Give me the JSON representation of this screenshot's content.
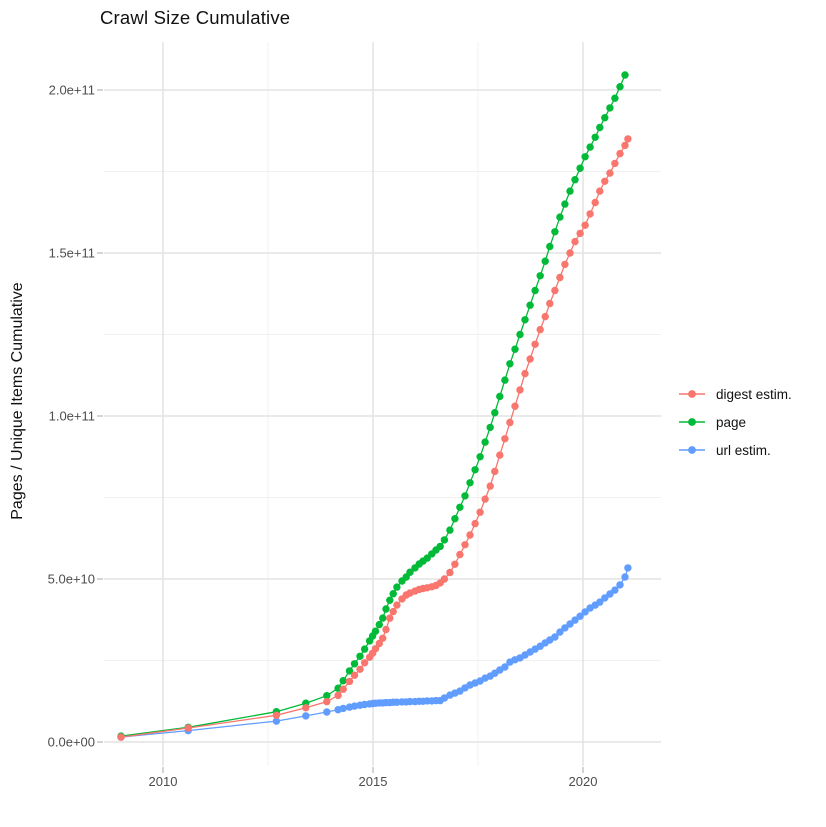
{
  "title": "Crawl Size Cumulative",
  "y_axis": {
    "label": "Pages / Unique Items Cumulative",
    "tick_labels": [
      "0.0e+00",
      "5.0e+10",
      "1.0e+11",
      "1.5e+11",
      "2.0e+11"
    ]
  },
  "x_axis": {
    "tick_labels": [
      "2010",
      "2015",
      "2020"
    ]
  },
  "legend": {
    "position": "right",
    "entries": [
      {
        "label": "digest estim.",
        "color": "#F8766D"
      },
      {
        "label": "page",
        "color": "#00BA38"
      },
      {
        "label": "url estim.",
        "color": "#619CFF"
      }
    ]
  },
  "colors": {
    "background": "#ffffff",
    "grid_major": "#e4e4e4",
    "grid_minor": "#f1f1f1",
    "tick_mark": "#bdbdbd",
    "axis_text": "#4d4d4d",
    "title_text": "#111111"
  },
  "chart_data": {
    "type": "line",
    "title": "Crawl Size Cumulative",
    "xlabel": "",
    "ylabel": "Pages / Unique Items Cumulative",
    "values_unit": "pages, in billions (1e9)",
    "xlim": [
      2008.6,
      2021.9
    ],
    "ylim": [
      0,
      215000000000.0
    ],
    "x_breaks": [
      2010,
      2015,
      2020
    ],
    "x_minor_breaks": [
      2012.5,
      2017.5
    ],
    "y_breaks": [
      0,
      50000000000.0,
      100000000000.0,
      150000000000.0,
      200000000000.0
    ],
    "y_minor_breaks": [
      25000000000.0,
      75000000000.0,
      125000000000.0,
      175000000000.0
    ],
    "grid": "major+minor",
    "legend_position": "right",
    "x": [
      2009.0,
      2010.6,
      2012.7,
      2013.4,
      2013.9,
      2014.17,
      2014.29,
      2014.44,
      2014.56,
      2014.69,
      2014.8,
      2014.92,
      2014.99,
      2015.06,
      2015.15,
      2015.23,
      2015.31,
      2015.4,
      2015.48,
      2015.57,
      2015.69,
      2015.79,
      2015.88,
      2016.0,
      2016.1,
      2016.19,
      2016.29,
      2016.4,
      2016.5,
      2016.6,
      2016.7,
      2016.83,
      2016.95,
      2017.07,
      2017.19,
      2017.31,
      2017.43,
      2017.55,
      2017.67,
      2017.79,
      2017.9,
      2018.02,
      2018.14,
      2018.26,
      2018.38,
      2018.5,
      2018.62,
      2018.74,
      2018.86,
      2018.98,
      2019.1,
      2019.21,
      2019.33,
      2019.45,
      2019.57,
      2019.69,
      2019.81,
      2019.93,
      2020.05,
      2020.17,
      2020.29,
      2020.4,
      2020.52,
      2020.64,
      2020.76,
      2020.88,
      2021.0,
      2021.07
    ],
    "series": [
      {
        "name": "digest estim.",
        "color": "#F8766D",
        "values_1e9": [
          1.5,
          4.3,
          8.2,
          10.5,
          12.4,
          14.3,
          16.2,
          18.6,
          20.5,
          22.3,
          24.3,
          26.0,
          27.2,
          28.6,
          30.2,
          31.8,
          34.5,
          38.0,
          40.0,
          42.0,
          43.9,
          45.1,
          45.7,
          46.3,
          46.8,
          47.1,
          47.3,
          47.6,
          48.0,
          48.8,
          50.0,
          52.0,
          54.5,
          57.5,
          60.5,
          63.5,
          67.0,
          70.5,
          74.5,
          78.5,
          83.0,
          88.0,
          93.0,
          98.0,
          103.0,
          108.0,
          113.0,
          117.5,
          122.0,
          126.5,
          130.5,
          134.5,
          138.5,
          142.5,
          146.5,
          150.0,
          153.5,
          156.0,
          158.5,
          162.0,
          165.5,
          169.0,
          172.0,
          174.5,
          177.5,
          180.5,
          183.0,
          185.0
        ]
      },
      {
        "name": "page",
        "color": "#00BA38",
        "values_1e9": [
          1.8,
          4.5,
          9.3,
          11.9,
          14.2,
          16.5,
          18.8,
          21.8,
          24.0,
          26.3,
          28.5,
          31.0,
          32.5,
          34.0,
          36.0,
          38.0,
          40.8,
          43.5,
          45.5,
          47.5,
          49.4,
          50.6,
          52.1,
          53.4,
          54.6,
          55.5,
          56.4,
          57.7,
          58.9,
          60.0,
          62.0,
          65.0,
          68.5,
          72.0,
          75.5,
          79.5,
          83.5,
          87.5,
          92.0,
          96.5,
          101.0,
          106.0,
          111.0,
          116.0,
          120.5,
          125.0,
          129.5,
          134.0,
          138.5,
          143.0,
          147.5,
          152.0,
          156.5,
          161.0,
          165.0,
          169.0,
          172.5,
          176.0,
          179.5,
          182.5,
          185.5,
          188.5,
          191.5,
          194.5,
          197.5,
          201.0,
          204.6,
          null
        ]
      },
      {
        "name": "url estim.",
        "color": "#619CFF",
        "values_1e9": [
          1.5,
          3.5,
          6.4,
          8.0,
          9.2,
          9.9,
          10.3,
          10.7,
          11.0,
          11.3,
          11.5,
          11.7,
          11.8,
          11.9,
          12.0,
          12.0,
          12.1,
          12.1,
          12.2,
          12.2,
          12.3,
          12.3,
          12.4,
          12.4,
          12.5,
          12.5,
          12.6,
          12.6,
          12.7,
          12.7,
          13.5,
          14.4,
          15.0,
          15.6,
          16.6,
          17.5,
          18.1,
          18.7,
          19.6,
          20.2,
          21.1,
          22.1,
          23.0,
          24.5,
          25.2,
          25.8,
          26.7,
          27.6,
          28.5,
          29.4,
          30.4,
          31.3,
          32.2,
          33.7,
          35.0,
          36.2,
          37.4,
          38.6,
          39.9,
          41.1,
          42.0,
          42.9,
          44.2,
          45.4,
          46.6,
          48.2,
          50.6,
          53.4
        ]
      }
    ]
  }
}
